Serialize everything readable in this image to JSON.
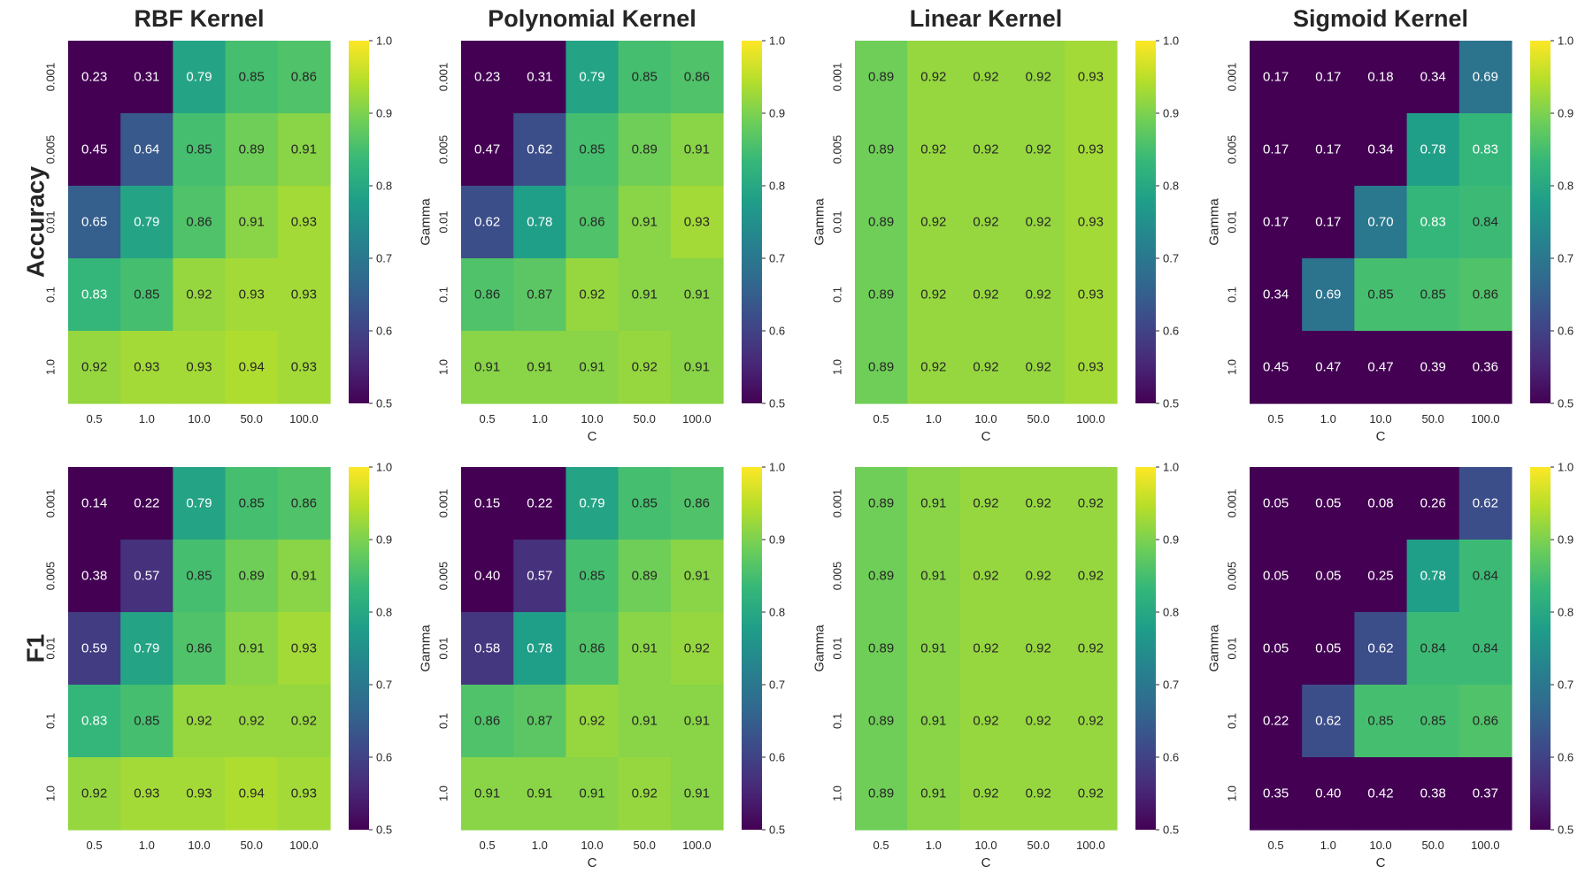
{
  "colors": {
    "colormap": [
      "#440154",
      "#482878",
      "#3e4989",
      "#31688e",
      "#26828e",
      "#1f9e89",
      "#35b779",
      "#6ece58",
      "#b5de2b",
      "#fde725"
    ],
    "text_light": "#ffffff",
    "text_dark": "#262626",
    "axis_text": "#262626"
  },
  "row_labels": [
    "Accuracy",
    "F1"
  ],
  "chart_data": [
    {
      "type": "heatmap",
      "title": "RBF Kernel",
      "row_metric": "Accuracy",
      "xlabel": "",
      "ylabel": "",
      "x_categories": [
        "0.5",
        "1.0",
        "10.0",
        "50.0",
        "100.0"
      ],
      "y_categories": [
        "0.001",
        "0.005",
        "0.01",
        "0.1",
        "1.0"
      ],
      "value_labels": [
        [
          "0.23",
          "0.31",
          "0.79",
          "0.85",
          "0.86"
        ],
        [
          "0.45",
          "0.64",
          "0.85",
          "0.89",
          "0.91"
        ],
        [
          "0.65",
          "0.79",
          "0.86",
          "0.91",
          "0.93"
        ],
        [
          "0.83",
          "0.85",
          "0.92",
          "0.93",
          "0.93"
        ],
        [
          "0.92",
          "0.93",
          "0.93",
          "0.94",
          "0.93"
        ]
      ],
      "colorbar": {
        "range": [
          0.5,
          1.0
        ],
        "ticks": [
          "0.5",
          "0.6",
          "0.7",
          "0.8",
          "0.9",
          "1.0"
        ]
      }
    },
    {
      "type": "heatmap",
      "title": "Polynomial Kernel",
      "row_metric": "Accuracy",
      "xlabel": "C",
      "ylabel": "Gamma",
      "x_categories": [
        "0.5",
        "1.0",
        "10.0",
        "50.0",
        "100.0"
      ],
      "y_categories": [
        "0.001",
        "0.005",
        "0.01",
        "0.1",
        "1.0"
      ],
      "value_labels": [
        [
          "0.23",
          "0.31",
          "0.79",
          "0.85",
          "0.86"
        ],
        [
          "0.47",
          "0.62",
          "0.85",
          "0.89",
          "0.91"
        ],
        [
          "0.62",
          "0.78",
          "0.86",
          "0.91",
          "0.93"
        ],
        [
          "0.86",
          "0.87",
          "0.92",
          "0.91",
          "0.91"
        ],
        [
          "0.91",
          "0.91",
          "0.91",
          "0.92",
          "0.91"
        ]
      ],
      "colorbar": {
        "range": [
          0.5,
          1.0
        ],
        "ticks": [
          "0.5",
          "0.6",
          "0.7",
          "0.8",
          "0.9",
          "1.0"
        ]
      }
    },
    {
      "type": "heatmap",
      "title": "Linear Kernel",
      "row_metric": "Accuracy",
      "xlabel": "C",
      "ylabel": "Gamma",
      "x_categories": [
        "0.5",
        "1.0",
        "10.0",
        "50.0",
        "100.0"
      ],
      "y_categories": [
        "0.001",
        "0.005",
        "0.01",
        "0.1",
        "1.0"
      ],
      "value_labels": [
        [
          "0.89",
          "0.92",
          "0.92",
          "0.92",
          "0.93"
        ],
        [
          "0.89",
          "0.92",
          "0.92",
          "0.92",
          "0.93"
        ],
        [
          "0.89",
          "0.92",
          "0.92",
          "0.92",
          "0.93"
        ],
        [
          "0.89",
          "0.92",
          "0.92",
          "0.92",
          "0.93"
        ],
        [
          "0.89",
          "0.92",
          "0.92",
          "0.92",
          "0.93"
        ]
      ],
      "colorbar": {
        "range": [
          0.5,
          1.0
        ],
        "ticks": [
          "0.5",
          "0.6",
          "0.7",
          "0.8",
          "0.9",
          "1.0"
        ]
      }
    },
    {
      "type": "heatmap",
      "title": "Sigmoid Kernel",
      "row_metric": "Accuracy",
      "xlabel": "C",
      "ylabel": "Gamma",
      "x_categories": [
        "0.5",
        "1.0",
        "10.0",
        "50.0",
        "100.0"
      ],
      "y_categories": [
        "0.001",
        "0.005",
        "0.01",
        "0.1",
        "1.0"
      ],
      "value_labels": [
        [
          "0.17",
          "0.17",
          "0.18",
          "0.34",
          "0.69"
        ],
        [
          "0.17",
          "0.17",
          "0.34",
          "0.78",
          "0.83"
        ],
        [
          "0.17",
          "0.17",
          "0.70",
          "0.83",
          "0.84"
        ],
        [
          "0.34",
          "0.69",
          "0.85",
          "0.85",
          "0.86"
        ],
        [
          "0.45",
          "0.47",
          "0.47",
          "0.39",
          "0.36"
        ]
      ],
      "colorbar": {
        "range": [
          0.5,
          1.0
        ],
        "ticks": [
          "0.5",
          "0.6",
          "0.7",
          "0.8",
          "0.9",
          "1.0"
        ]
      }
    },
    {
      "type": "heatmap",
      "title": "",
      "row_metric": "F1",
      "xlabel": "",
      "ylabel": "",
      "x_categories": [
        "0.5",
        "1.0",
        "10.0",
        "50.0",
        "100.0"
      ],
      "y_categories": [
        "0.001",
        "0.005",
        "0.01",
        "0.1",
        "1.0"
      ],
      "value_labels": [
        [
          "0.14",
          "0.22",
          "0.79",
          "0.85",
          "0.86"
        ],
        [
          "0.38",
          "0.57",
          "0.85",
          "0.89",
          "0.91"
        ],
        [
          "0.59",
          "0.79",
          "0.86",
          "0.91",
          "0.93"
        ],
        [
          "0.83",
          "0.85",
          "0.92",
          "0.92",
          "0.92"
        ],
        [
          "0.92",
          "0.93",
          "0.93",
          "0.94",
          "0.93"
        ]
      ],
      "colorbar": {
        "range": [
          0.5,
          1.0
        ],
        "ticks": [
          "0.5",
          "0.6",
          "0.7",
          "0.8",
          "0.9",
          "1.0"
        ]
      }
    },
    {
      "type": "heatmap",
      "title": "",
      "row_metric": "F1",
      "xlabel": "C",
      "ylabel": "Gamma",
      "x_categories": [
        "0.5",
        "1.0",
        "10.0",
        "50.0",
        "100.0"
      ],
      "y_categories": [
        "0.001",
        "0.005",
        "0.01",
        "0.1",
        "1.0"
      ],
      "value_labels": [
        [
          "0.15",
          "0.22",
          "0.79",
          "0.85",
          "0.86"
        ],
        [
          "0.40",
          "0.57",
          "0.85",
          "0.89",
          "0.91"
        ],
        [
          "0.58",
          "0.78",
          "0.86",
          "0.91",
          "0.92"
        ],
        [
          "0.86",
          "0.87",
          "0.92",
          "0.91",
          "0.91"
        ],
        [
          "0.91",
          "0.91",
          "0.91",
          "0.92",
          "0.91"
        ]
      ],
      "colorbar": {
        "range": [
          0.5,
          1.0
        ],
        "ticks": [
          "0.5",
          "0.6",
          "0.7",
          "0.8",
          "0.9",
          "1.0"
        ]
      }
    },
    {
      "type": "heatmap",
      "title": "",
      "row_metric": "F1",
      "xlabel": "C",
      "ylabel": "Gamma",
      "x_categories": [
        "0.5",
        "1.0",
        "10.0",
        "50.0",
        "100.0"
      ],
      "y_categories": [
        "0.001",
        "0.005",
        "0.01",
        "0.1",
        "1.0"
      ],
      "value_labels": [
        [
          "0.89",
          "0.91",
          "0.92",
          "0.92",
          "0.92"
        ],
        [
          "0.89",
          "0.91",
          "0.92",
          "0.92",
          "0.92"
        ],
        [
          "0.89",
          "0.91",
          "0.92",
          "0.92",
          "0.92"
        ],
        [
          "0.89",
          "0.91",
          "0.92",
          "0.92",
          "0.92"
        ],
        [
          "0.89",
          "0.91",
          "0.92",
          "0.92",
          "0.92"
        ]
      ],
      "colorbar": {
        "range": [
          0.5,
          1.0
        ],
        "ticks": [
          "0.5",
          "0.6",
          "0.7",
          "0.8",
          "0.9",
          "1.0"
        ]
      }
    },
    {
      "type": "heatmap",
      "title": "",
      "row_metric": "F1",
      "xlabel": "C",
      "ylabel": "Gamma",
      "x_categories": [
        "0.5",
        "1.0",
        "10.0",
        "50.0",
        "100.0"
      ],
      "y_categories": [
        "0.001",
        "0.005",
        "0.01",
        "0.1",
        "1.0"
      ],
      "value_labels": [
        [
          "0.05",
          "0.05",
          "0.08",
          "0.26",
          "0.62"
        ],
        [
          "0.05",
          "0.05",
          "0.25",
          "0.78",
          "0.84"
        ],
        [
          "0.05",
          "0.05",
          "0.62",
          "0.84",
          "0.84"
        ],
        [
          "0.22",
          "0.62",
          "0.85",
          "0.85",
          "0.86"
        ],
        [
          "0.35",
          "0.40",
          "0.42",
          "0.38",
          "0.37"
        ]
      ],
      "colorbar": {
        "range": [
          0.5,
          1.0
        ],
        "ticks": [
          "0.5",
          "0.6",
          "0.7",
          "0.8",
          "0.9",
          "1.0"
        ]
      }
    }
  ]
}
